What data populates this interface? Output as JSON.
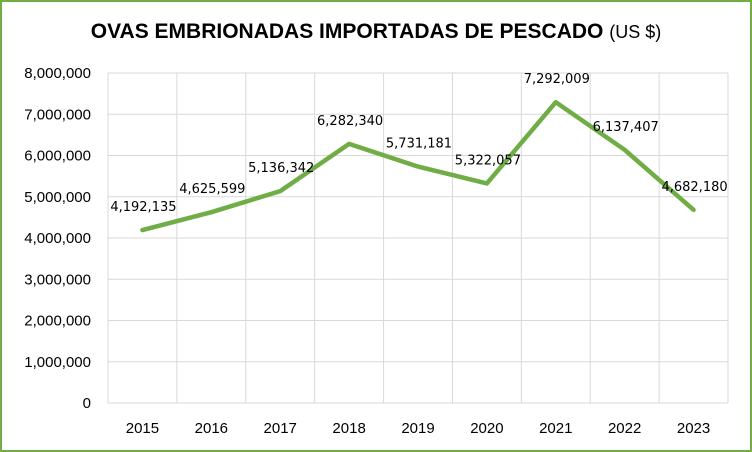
{
  "chart_data": {
    "type": "line",
    "title": "OVAS EMBRIONADAS IMPORTADAS DE PESCADO",
    "title_unit": "(US $)",
    "categories": [
      "2015",
      "2016",
      "2017",
      "2018",
      "2019",
      "2020",
      "2021",
      "2022",
      "2023"
    ],
    "series": [
      {
        "values": [
          4192135,
          4625599,
          5136342,
          6282340,
          5731181,
          5322057,
          7292009,
          6137407,
          4682180
        ],
        "data_labels": [
          "4,192,135",
          "4,625,599",
          "5,136,342",
          "6,282,340",
          "5,731,181",
          "5,322,057",
          "7,292,009",
          "6,137,407",
          "4,682,180"
        ],
        "color": "#70AD47"
      }
    ],
    "y_ticks": [
      "0",
      "1,000,000",
      "2,000,000",
      "3,000,000",
      "4,000,000",
      "5,000,000",
      "6,000,000",
      "7,000,000",
      "8,000,000"
    ],
    "ylim": [
      0,
      8000000
    ],
    "xlabel": "",
    "ylabel": "",
    "grid": true,
    "legend": "none",
    "colors": {
      "border": "#70AD47",
      "grid": "#D9D9D9",
      "line": "#70AD47"
    }
  }
}
